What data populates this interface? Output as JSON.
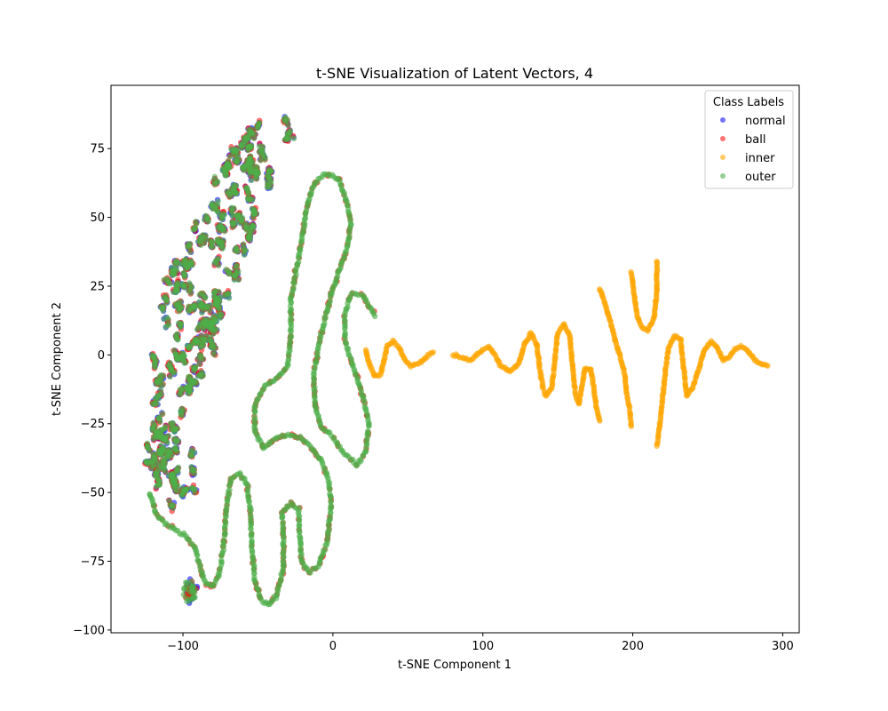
{
  "chart_data": {
    "type": "scatter",
    "title": "t-SNE Visualization of Latent Vectors, 4",
    "xlabel": "t-SNE Component 1",
    "ylabel": "t-SNE Component 2",
    "xlim": [
      -148,
      311
    ],
    "ylim": [
      -101,
      98
    ],
    "xticks": [
      -100,
      0,
      100,
      200,
      300
    ],
    "yticks": [
      -100,
      -75,
      -50,
      -25,
      0,
      25,
      50,
      75
    ],
    "xtick_labels": [
      "−100",
      "0",
      "100",
      "200",
      "300"
    ],
    "ytick_labels": [
      "−100",
      "−75",
      "−50",
      "−25",
      "0",
      "25",
      "50",
      "75"
    ],
    "grid": false,
    "legend": {
      "title": "Class Labels",
      "placement": "top-right",
      "entries": [
        "normal",
        "ball",
        "inner",
        "outer"
      ]
    },
    "series": [
      {
        "name": "normal",
        "color": "#0000ff",
        "alpha": 0.55
      },
      {
        "name": "ball",
        "color": "#ff0000",
        "alpha": 0.55
      },
      {
        "name": "inner",
        "color": "#ffa500",
        "alpha": 0.6
      },
      {
        "name": "outer",
        "color": "#4daf4a",
        "alpha": 0.6
      }
    ],
    "structures": {
      "upper_cloud_hull": [
        [
          -125,
          -45
        ],
        [
          -122,
          -20
        ],
        [
          -120,
          5
        ],
        [
          -110,
          30
        ],
        [
          -98,
          50
        ],
        [
          -80,
          65
        ],
        [
          -62,
          78
        ],
        [
          -45,
          87
        ],
        [
          -22,
          90
        ],
        [
          -26,
          82
        ],
        [
          -36,
          72
        ],
        [
          -48,
          55
        ],
        [
          -55,
          40
        ],
        [
          -60,
          25
        ],
        [
          -70,
          12
        ],
        [
          -80,
          0
        ],
        [
          -92,
          -12
        ],
        [
          -100,
          -28
        ],
        [
          -108,
          -40
        ],
        [
          -115,
          -48
        ]
      ],
      "lower_cloud_hull": [
        [
          -124,
          -48
        ],
        [
          -120,
          -28
        ],
        [
          -105,
          -30
        ],
        [
          -92,
          -35
        ],
        [
          -90,
          -48
        ],
        [
          -105,
          -55
        ],
        [
          -118,
          -55
        ]
      ],
      "bottom_cluster": {
        "x": -95,
        "y": -86,
        "rx": 5,
        "ry": 4
      },
      "green_curves": [
        [
          [
            -122,
            -50
          ],
          [
            -118,
            -58
          ],
          [
            -110,
            -62
          ],
          [
            -100,
            -65
          ],
          [
            -92,
            -70
          ],
          [
            -88,
            -78
          ],
          [
            -85,
            -83
          ],
          [
            -80,
            -84
          ],
          [
            -76,
            -80
          ],
          [
            -73,
            -70
          ],
          [
            -71,
            -55
          ],
          [
            -68,
            -45
          ],
          [
            -62,
            -43
          ],
          [
            -57,
            -47
          ],
          [
            -55,
            -58
          ],
          [
            -54,
            -70
          ],
          [
            -52,
            -82
          ],
          [
            -48,
            -89
          ],
          [
            -43,
            -91
          ],
          [
            -38,
            -88
          ],
          [
            -33,
            -78
          ],
          [
            -33,
            -64
          ],
          [
            -34,
            -57
          ],
          [
            -28,
            -54
          ],
          [
            -23,
            -56
          ],
          [
            -22,
            -66
          ],
          [
            -21,
            -75
          ],
          [
            -16,
            -79
          ],
          [
            -10,
            -77
          ],
          [
            -4,
            -68
          ],
          [
            -1,
            -55
          ],
          [
            -3,
            -45
          ],
          [
            -8,
            -38
          ],
          [
            -15,
            -33
          ],
          [
            -22,
            -30
          ],
          [
            -30,
            -29
          ],
          [
            -38,
            -30
          ],
          [
            -46,
            -34
          ],
          [
            -52,
            -28
          ],
          [
            -52,
            -18
          ],
          [
            -45,
            -11
          ],
          [
            -36,
            -8
          ],
          [
            -30,
            -4
          ],
          [
            -28,
            8
          ],
          [
            -28,
            20
          ],
          [
            -24,
            32
          ],
          [
            -20,
            44
          ],
          [
            -17,
            55
          ],
          [
            -12,
            63
          ],
          [
            -4,
            66
          ],
          [
            4,
            64
          ],
          [
            9,
            56
          ],
          [
            12,
            48
          ],
          [
            10,
            40
          ],
          [
            5,
            32
          ],
          [
            0,
            24
          ],
          [
            -5,
            14
          ],
          [
            -10,
            2
          ],
          [
            -13,
            -8
          ],
          [
            -12,
            -18
          ],
          [
            -8,
            -26
          ],
          [
            0,
            -30
          ],
          [
            8,
            -36
          ],
          [
            16,
            -40
          ],
          [
            22,
            -35
          ],
          [
            24,
            -25
          ],
          [
            20,
            -15
          ],
          [
            14,
            -5
          ],
          [
            8,
            5
          ],
          [
            8,
            15
          ],
          [
            12,
            22
          ],
          [
            20,
            22
          ],
          [
            25,
            17
          ],
          [
            28,
            14
          ]
        ]
      ],
      "orange_curves": [
        [
          [
            22,
            2
          ],
          [
            24,
            -3
          ],
          [
            28,
            -8
          ],
          [
            32,
            -7
          ],
          [
            34,
            -2
          ],
          [
            36,
            3
          ],
          [
            40,
            5
          ],
          [
            44,
            3
          ],
          [
            48,
            -2
          ],
          [
            52,
            -4
          ],
          [
            58,
            -3
          ],
          [
            64,
            0
          ],
          [
            67,
            1
          ]
        ],
        [
          [
            80,
            0
          ],
          [
            86,
            -1
          ],
          [
            92,
            -2
          ],
          [
            96,
            0
          ],
          [
            100,
            2
          ],
          [
            104,
            3
          ],
          [
            108,
            0
          ],
          [
            112,
            -4
          ],
          [
            118,
            -6
          ],
          [
            124,
            -3
          ],
          [
            128,
            4
          ],
          [
            132,
            8
          ],
          [
            136,
            4
          ],
          [
            138,
            -5
          ],
          [
            140,
            -12
          ],
          [
            142,
            -15
          ],
          [
            146,
            -12
          ],
          [
            148,
            -2
          ],
          [
            150,
            8
          ],
          [
            154,
            11
          ],
          [
            158,
            7
          ],
          [
            160,
            -5
          ],
          [
            162,
            -15
          ],
          [
            164,
            -18
          ],
          [
            166,
            -12
          ],
          [
            168,
            -5
          ],
          [
            172,
            -5
          ],
          [
            174,
            -12
          ],
          [
            176,
            -20
          ],
          [
            178,
            -24
          ]
        ],
        [
          [
            178,
            24
          ],
          [
            182,
            18
          ],
          [
            186,
            10
          ],
          [
            190,
            2
          ],
          [
            194,
            -5
          ],
          [
            196,
            -14
          ],
          [
            198,
            -20
          ],
          [
            199,
            -26
          ]
        ],
        [
          [
            199,
            30
          ],
          [
            201,
            22
          ],
          [
            203,
            14
          ],
          [
            206,
            10
          ],
          [
            210,
            9
          ],
          [
            214,
            13
          ],
          [
            216,
            22
          ],
          [
            216,
            34
          ]
        ],
        [
          [
            216,
            -33
          ],
          [
            218,
            -26
          ],
          [
            220,
            -15
          ],
          [
            222,
            -5
          ],
          [
            224,
            3
          ],
          [
            228,
            7
          ],
          [
            232,
            6
          ],
          [
            234,
            -5
          ],
          [
            236,
            -15
          ],
          [
            240,
            -12
          ],
          [
            244,
            -5
          ],
          [
            248,
            2
          ],
          [
            252,
            5
          ],
          [
            256,
            3
          ],
          [
            260,
            -2
          ],
          [
            264,
            -1
          ],
          [
            268,
            2
          ],
          [
            272,
            3
          ],
          [
            276,
            2
          ],
          [
            280,
            -1
          ],
          [
            284,
            -3
          ],
          [
            290,
            -4
          ]
        ]
      ]
    }
  }
}
